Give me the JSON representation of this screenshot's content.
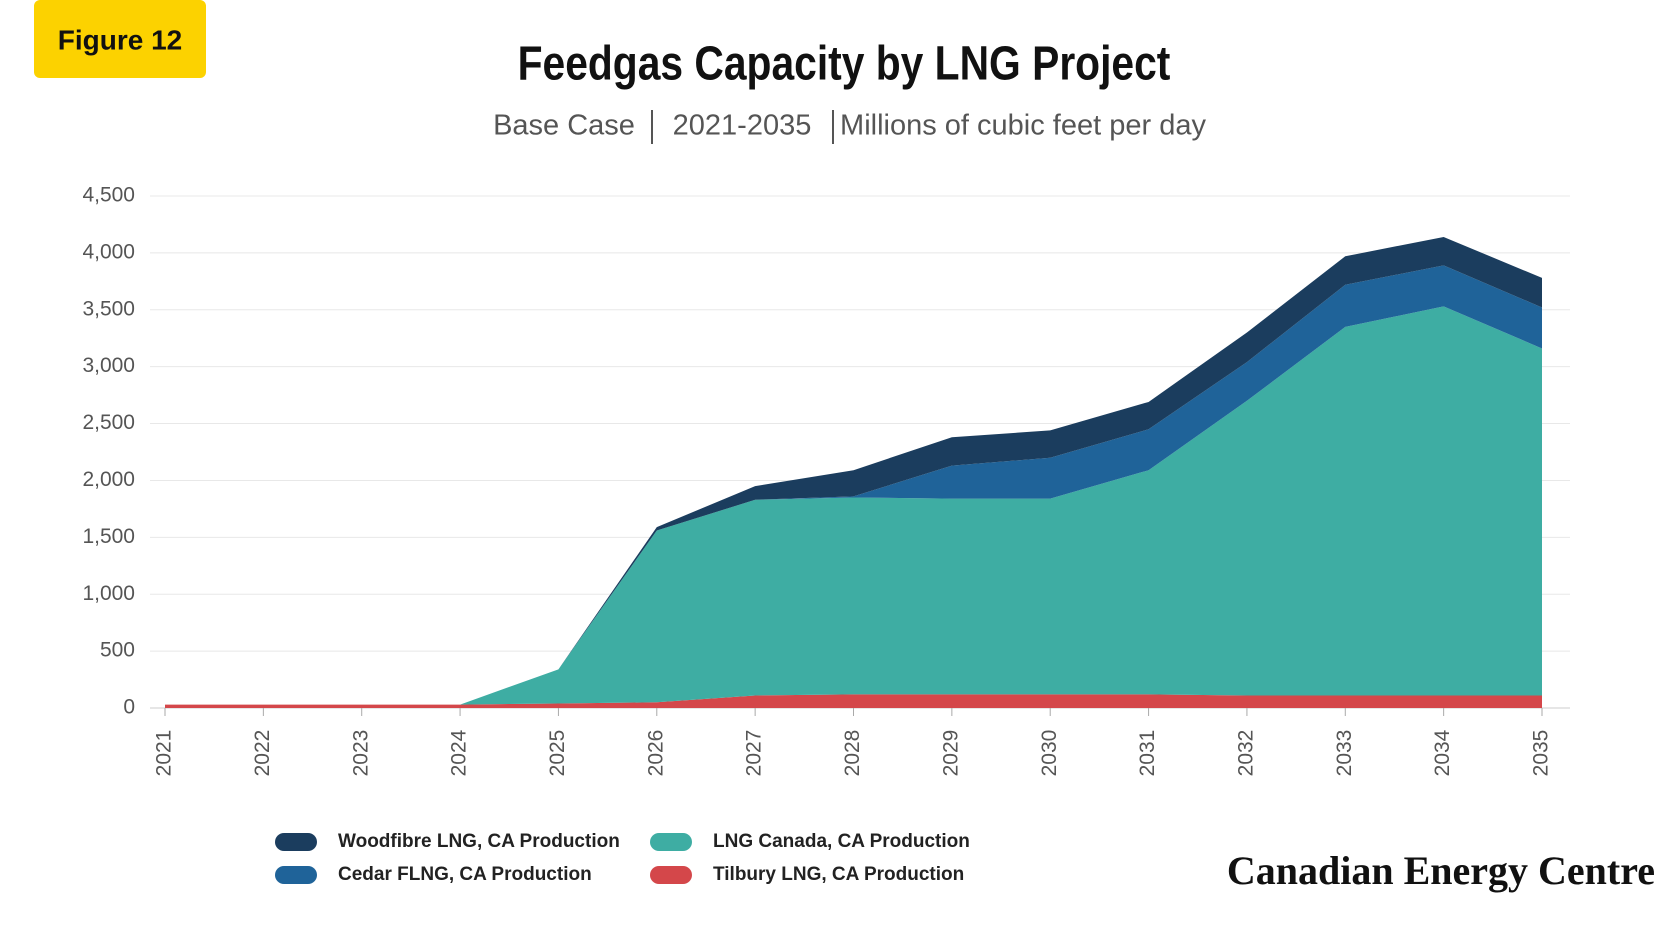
{
  "badge": "Figure 12",
  "source": "Canadian Energy Centre",
  "chart_data": {
    "type": "stacked-area",
    "title": "Feedgas Capacity by LNG Project",
    "subtitle": [
      "Base Case",
      "2021-2035",
      "Millions of cubic feet per day"
    ],
    "categories": [
      "2021",
      "2022",
      "2023",
      "2024",
      "2025",
      "2026",
      "2027",
      "2028",
      "2029",
      "2030",
      "2031",
      "2032",
      "2033",
      "2034",
      "2035"
    ],
    "series": [
      {
        "name": "Woodfibre LNG, CA Production",
        "color": "#1b3d5e",
        "values": [
          0,
          0,
          0,
          0,
          0,
          30,
          120,
          230,
          250,
          240,
          240,
          260,
          250,
          250,
          260
        ]
      },
      {
        "name": "Cedar FLNG, CA Production",
        "color": "#1f6399",
        "values": [
          0,
          0,
          0,
          0,
          0,
          0,
          0,
          10,
          290,
          360,
          360,
          340,
          370,
          360,
          360
        ]
      },
      {
        "name": "LNG Canada, CA Production",
        "color": "#3eada3",
        "values": [
          0,
          0,
          0,
          0,
          300,
          1510,
          1720,
          1730,
          1720,
          1720,
          1970,
          2590,
          3240,
          3420,
          3050
        ]
      },
      {
        "name": "Tilbury LNG, CA Production",
        "color": "#d4474a",
        "values": [
          30,
          30,
          30,
          30,
          40,
          50,
          110,
          120,
          120,
          120,
          120,
          110,
          110,
          110,
          110
        ]
      }
    ],
    "ylim": [
      0,
      4500
    ],
    "yticks": [
      0,
      500,
      {
        "value": 1000,
        "label": "1,000"
      },
      {
        "value": 1500,
        "label": "1,500"
      },
      {
        "value": 2000,
        "label": "2,000"
      },
      {
        "value": 2500,
        "label": "2,500"
      },
      {
        "value": 3000,
        "label": "3,000"
      },
      {
        "value": 3500,
        "label": "3,500"
      },
      {
        "value": 4000,
        "label": "4,000"
      },
      {
        "value": 4500,
        "label": "4,500"
      }
    ],
    "grid": true
  }
}
